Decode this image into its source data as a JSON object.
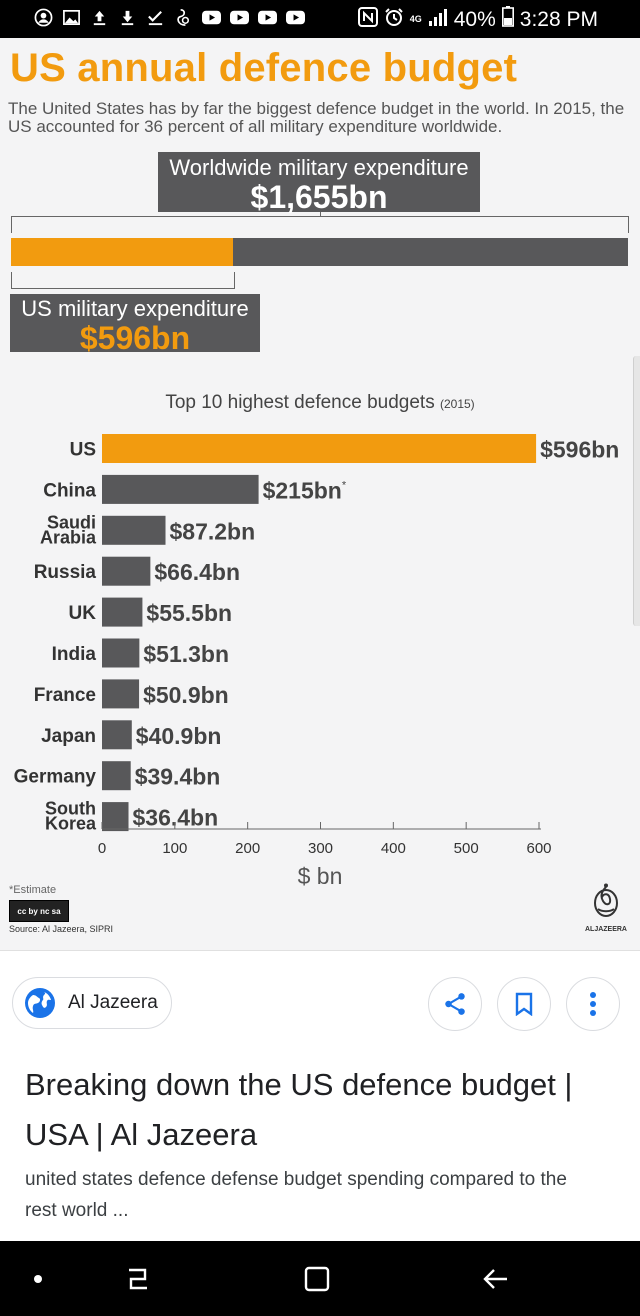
{
  "status_bar": {
    "battery": "40%",
    "time": "3:28 PM",
    "network": "4G",
    "left_icons": [
      "avatar-icon",
      "image-icon",
      "upload-icon",
      "download-icon",
      "check-icon",
      "swirl-icon",
      "youtube-icon",
      "youtube-icon",
      "youtube-icon",
      "youtube-icon"
    ]
  },
  "infographic": {
    "title": "US annual defence budget",
    "subtitle": "The United States has by far the biggest defence budget in the world. In 2015, the US accounted for 36 percent of all military expenditure worldwide.",
    "worldwide": {
      "label": "Worldwide military expenditure",
      "value": "$1,655bn",
      "amount": 1655
    },
    "us": {
      "label": "US military expenditure",
      "value": "$596bn",
      "amount": 596
    },
    "chart_title": "Top 10 highest defence budgets",
    "chart_year": "(2015)",
    "estimate_note": "*Estimate",
    "license": "cc by nc sa",
    "source": "Source: Al Jazeera, SIPRI",
    "logo_text": "ALJAZEERA",
    "colors": {
      "accent": "#f29b0f",
      "bar": "#58585a"
    }
  },
  "chart_data": {
    "type": "bar",
    "orientation": "horizontal",
    "title": "Top 10 highest defence budgets (2015)",
    "categories": [
      "US",
      "China",
      "Saudi Arabia",
      "Russia",
      "UK",
      "India",
      "France",
      "Japan",
      "Germany",
      "South Korea"
    ],
    "category_lines": [
      [
        "US"
      ],
      [
        "China"
      ],
      [
        "Saudi",
        "Arabia"
      ],
      [
        "Russia"
      ],
      [
        "UK"
      ],
      [
        "India"
      ],
      [
        "France"
      ],
      [
        "Japan"
      ],
      [
        "Germany"
      ],
      [
        "South",
        "Korea"
      ]
    ],
    "values": [
      596,
      215,
      87.2,
      66.4,
      55.5,
      51.3,
      50.9,
      40.9,
      39.4,
      36.4
    ],
    "labels": [
      "$596bn",
      "$215bn",
      "$87.2bn",
      "$66.4bn",
      "$55.5bn",
      "$51.3bn",
      "$50.9bn",
      "$40.9bn",
      "$39.4bn",
      "$36.4bn"
    ],
    "estimate_mark": [
      "",
      "*",
      "",
      "",
      "",
      "",
      "",
      "",
      "",
      ""
    ],
    "highlight": [
      "US"
    ],
    "xlabel": "$ bn",
    "xlim": [
      0,
      600
    ],
    "xticks": [
      0,
      100,
      200,
      300,
      400,
      500,
      600
    ],
    "grid": false,
    "legend": "none"
  },
  "result": {
    "source_name": "Al Jazeera",
    "title": "Breaking down the US defence budget | USA | Al Jazeera",
    "snippet": "united states defence defense budget spending compared to the rest world ..."
  }
}
